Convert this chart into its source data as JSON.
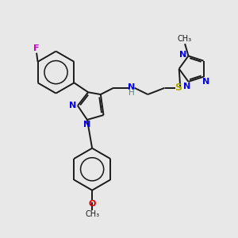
{
  "bg_color": "#e8e8e8",
  "bond_color": "#1a1a1a",
  "N_color": "#0000ee",
  "O_color": "#dd0000",
  "S_color": "#aaaa00",
  "F_color": "#cc00cc",
  "lw": 1.4,
  "figsize": [
    3.0,
    3.0
  ],
  "dpi": 100,
  "xlim": [
    0,
    10
  ],
  "ylim": [
    0,
    10
  ]
}
